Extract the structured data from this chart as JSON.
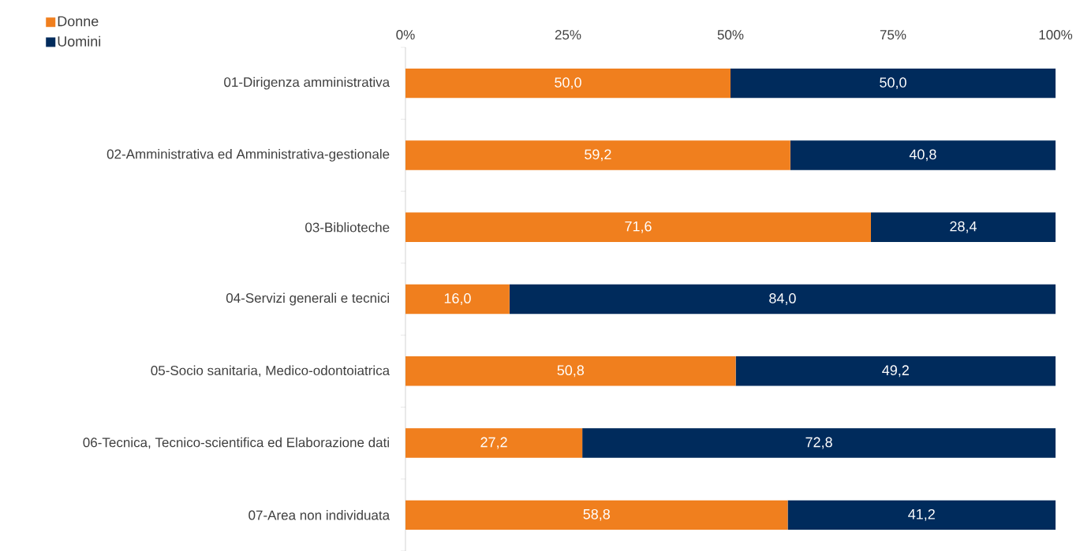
{
  "chart_data": {
    "type": "bar",
    "orientation": "horizontal",
    "stacked": true,
    "categories": [
      "01-Dirigenza amministrativa",
      "02-Amministrativa ed Amministrativa-gestionale",
      "03-Biblioteche",
      "04-Servizi generali e tecnici",
      "05-Socio sanitaria, Medico-odontoiatrica",
      "06-Tecnica, Tecnico-scientifica ed Elaborazione dati",
      "07-Area non individuata"
    ],
    "series": [
      {
        "name": "Donne",
        "color": "#f07f1e",
        "values": [
          50.0,
          59.2,
          71.6,
          16.0,
          50.8,
          27.2,
          58.8
        ],
        "value_labels": [
          "50,0",
          "59,2",
          "71,6",
          "16,0",
          "50,8",
          "27,2",
          "58,8"
        ]
      },
      {
        "name": "Uomini",
        "color": "#002b5c",
        "values": [
          50.0,
          40.8,
          28.4,
          84.0,
          49.2,
          72.8,
          41.2
        ],
        "value_labels": [
          "50,0",
          "40,8",
          "28,4",
          "84,0",
          "49,2",
          "72,8",
          "41,2"
        ]
      }
    ],
    "xlim": [
      0,
      100
    ],
    "xticks": [
      {
        "value": 0,
        "label": "0%"
      },
      {
        "value": 25,
        "label": "25%"
      },
      {
        "value": 50,
        "label": "50%"
      },
      {
        "value": 75,
        "label": "75%"
      },
      {
        "value": 100,
        "label": "100%"
      }
    ],
    "legend": "top left",
    "grid": false
  }
}
